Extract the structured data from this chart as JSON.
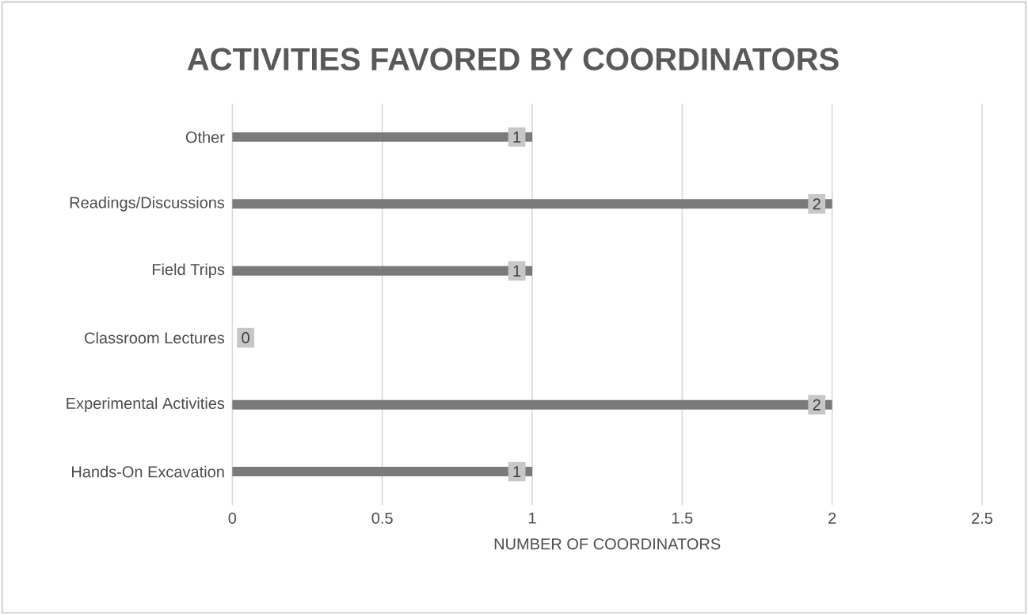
{
  "chart_data": {
    "type": "bar",
    "orientation": "horizontal",
    "title": "ACTIVITIES FAVORED BY COORDINATORS",
    "xlabel": "NUMBER OF COORDINATORS",
    "categories": [
      "Other",
      "Readings/Discussions",
      "Field Trips",
      "Classroom Lectures",
      "Experimental Activities",
      "Hands-On Excavation"
    ],
    "values": [
      1,
      2,
      1,
      0,
      2,
      1
    ],
    "color": "#7a7a7a",
    "xlim": [
      0,
      2.5
    ],
    "xticks": [
      0,
      0.5,
      1,
      1.5,
      2,
      2.5
    ],
    "grid": "x",
    "data_labels": true
  }
}
